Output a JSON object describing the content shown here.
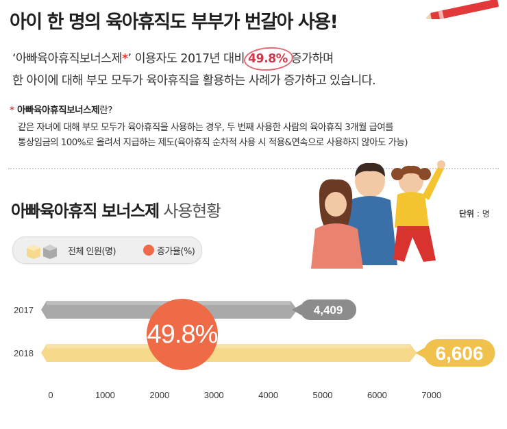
{
  "headline": "아이 한 명의 육아휴직도 부부가 번갈아 사용!",
  "intro": {
    "line1_before": "‘아빠육아휴직보너스제",
    "line1_star": "*",
    "line1_after": "’ 이용자도 2017년 대비 ",
    "line1_highlight": "49.8%",
    "line1_end": " 증가하며",
    "line2": "한 아이에 대해 부모 모두가 육아휴직을 활용하는 사례가 증가하고 있습니다."
  },
  "note": {
    "star": "*",
    "title": "아빠육아휴직보너스제",
    "title_suffix": "란?",
    "line1": "같은 자녀에 대해 부모 모두가 육아휴직을 사용하는 경우, 두 번째 사용한 사람의 육아휴직 3개월 급여를",
    "line2": "통상임금의 100%로 올려서 지급하는 제도(육아휴직 순차적 사용 시 적용&연속으로 사용하지 않아도 가능)"
  },
  "chart_title": {
    "bold": "아빠육아휴직 보너스제",
    "light": " 사용현황"
  },
  "unit": {
    "label": "단위",
    "value": " : 명"
  },
  "legend": {
    "total": "전체 인원(명)",
    "rate": "증가율(%)"
  },
  "colors": {
    "bar_2017": "#a9a9a9",
    "bar_2018": "#f6d98a",
    "label_2017": "#8c8c8c",
    "label_2018": "#f0c14d",
    "bubble": "#ef6a47",
    "highlight": "#d8344a"
  },
  "chart_data": {
    "type": "bar",
    "orientation": "horizontal",
    "categories": [
      "2017",
      "2018"
    ],
    "series": [
      {
        "name": "전체 인원(명)",
        "values": [
          4409,
          6606
        ]
      }
    ],
    "value_labels": [
      "4,409",
      "6,606"
    ],
    "growth_rate_label": "49.8%",
    "xlim": [
      0,
      7000
    ],
    "xticks": [
      0,
      1000,
      2000,
      3000,
      4000,
      5000,
      6000,
      7000
    ],
    "grid": false
  }
}
